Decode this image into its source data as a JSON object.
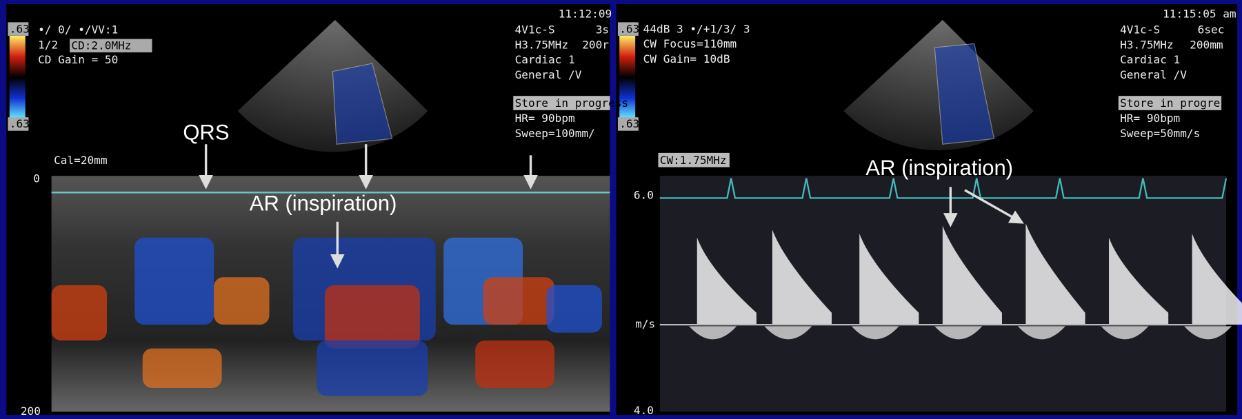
{
  "left_panel": {
    "scale_top": ".63",
    "mode": "•/ 0/ •/VV:1",
    "ratio": "1/2",
    "frequency": "CD:2.0MHz",
    "gain": "CD Gain = 50",
    "scale_bottom": ".63",
    "time": "11:12:09",
    "probe": "4V1c-S",
    "probe_suffix": "3s",
    "probe_freq": "H3.75MHz",
    "depth": "200r",
    "preset": "Cardiac 1",
    "preset2": "General /V",
    "status": "Store in progress",
    "heart_rate": "HR= 90bpm",
    "sweep": "Sweep=100mm/",
    "calibration": "Cal=20mm",
    "depth_top": "0",
    "depth_bottom": "200",
    "annotation_qrs": "QRS",
    "annotation_ar": "AR (inspiration)"
  },
  "right_panel": {
    "scale_top": ".63",
    "mode": "44dB 3 •/+1/3/ 3",
    "focus": "CW Focus=110mm",
    "gain": "CW Gain= 10dB",
    "scale_bottom": ".63",
    "time": "11:15:05 am",
    "probe": "4V1c-S",
    "duration": "6sec",
    "probe_freq": "H3.75MHz",
    "depth": "200mm",
    "preset": "Cardiac 1",
    "preset2": "General /V",
    "status": "Store in progress",
    "heart_rate": "HR= 90bpm",
    "sweep": "Sweep=50mm/s",
    "cw_frequency": "CW:1.75MHz",
    "axis_top": "6.0",
    "axis_unit": "m/s",
    "axis_bottom": "4.0",
    "annotation_ar": "AR (inspiration)"
  }
}
